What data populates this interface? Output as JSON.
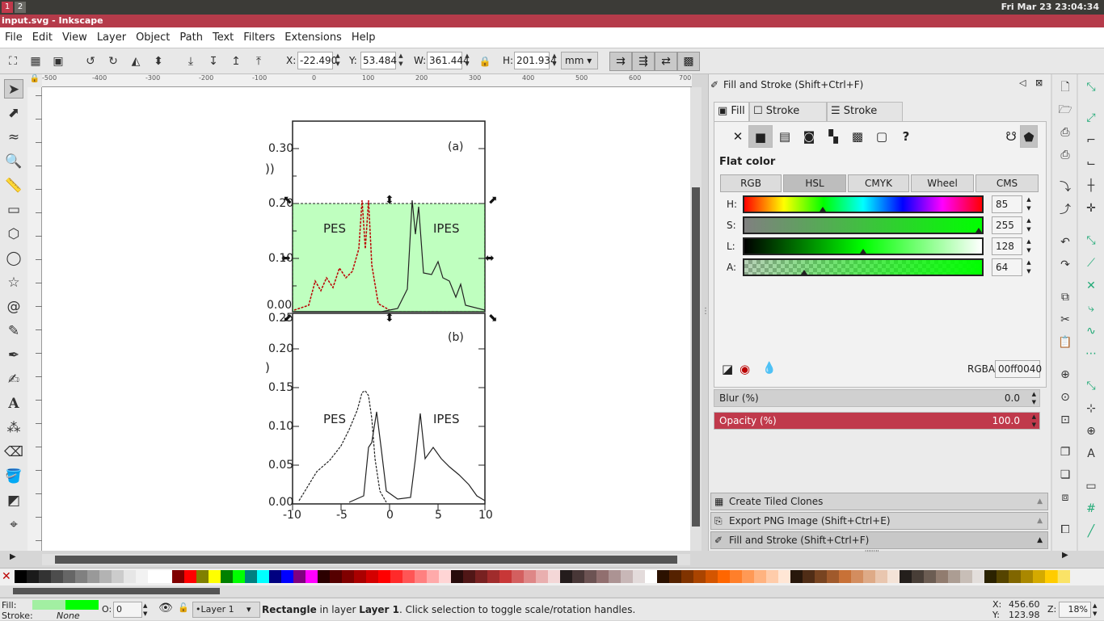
{
  "system": {
    "workspace_1": "1",
    "workspace_2": "2",
    "clock": "Fri Mar 23 23:04:34"
  },
  "window": {
    "title": "input.svg - Inkscape"
  },
  "menu": [
    "File",
    "Edit",
    "View",
    "Layer",
    "Object",
    "Path",
    "Text",
    "Filters",
    "Extensions",
    "Help"
  ],
  "toolbar": {
    "x_label": "X:",
    "x_value": "-22.490",
    "y_label": "Y:",
    "y_value": "53.484",
    "w_label": "W:",
    "w_value": "361.444",
    "h_label": "H:",
    "h_value": "201.934",
    "unit": "mm"
  },
  "hruler_ticks": [
    "-500",
    "-400",
    "-300",
    "-200",
    "-100",
    "0",
    "100",
    "200",
    "300",
    "400",
    "500",
    "600",
    "700"
  ],
  "canvas": {
    "plot_a": {
      "label": "(a)",
      "pes": "PES",
      "ipes": "IPES",
      "yticks": [
        "0.30",
        "0.20",
        "0.10",
        "0.00"
      ],
      "side": "))"
    },
    "plot_b": {
      "label": "(b)",
      "pes": "PES",
      "ipes": "IPES",
      "yticks": [
        "0.25",
        "0.20",
        "0.15",
        "0.10",
        "0.05",
        "0.00"
      ],
      "xticks": [
        "-10",
        "-5",
        "0",
        "5",
        "10"
      ],
      "side": ")"
    },
    "selection_fill": "#00ff0040"
  },
  "panel": {
    "title": "Fill and Stroke (Shift+Ctrl+F)",
    "tabs": [
      "Fill",
      "Stroke paint",
      "Stroke style"
    ],
    "fill_type_label": "Flat color",
    "modes": [
      "RGB",
      "HSL",
      "CMYK",
      "Wheel",
      "CMS"
    ],
    "active_mode": "HSL",
    "channels": [
      {
        "label": "H:",
        "value": "85",
        "fraction": 0.33
      },
      {
        "label": "S:",
        "value": "255",
        "fraction": 1.0
      },
      {
        "label": "L:",
        "value": "128",
        "fraction": 0.5
      },
      {
        "label": "A:",
        "value": "64",
        "fraction": 0.25
      }
    ],
    "rgba_label": "RGBA:",
    "rgba_value": "00ff0040",
    "blur_label": "Blur (%)",
    "blur_value": "0.0",
    "opacity_label": "Opacity (%)",
    "opacity_value": "100.0",
    "docked": [
      "Create Tiled Clones",
      "Export PNG Image (Shift+Ctrl+E)",
      "Fill and Stroke (Shift+Ctrl+F)"
    ]
  },
  "status": {
    "fill_label": "Fill:",
    "stroke_label": "Stroke:",
    "stroke_value": "None",
    "opacity_label": "O:",
    "opacity_value": "0",
    "layer": "•Layer 1",
    "msg_type": "Rectangle",
    "msg_mid": " in layer ",
    "msg_layer": "Layer 1",
    "msg_tail": ". Click selection to toggle scale/rotation handles.",
    "x_label": "X:",
    "x_value": "456.60",
    "y_label": "Y:",
    "y_value": "123.98",
    "zoom_label": "Z:",
    "zoom_value": "18%"
  },
  "colors": {
    "accent_red": "#c0394b",
    "selection_green": "#00ff00"
  }
}
